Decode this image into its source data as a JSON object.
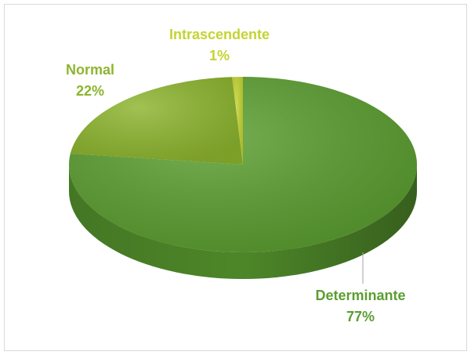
{
  "chart_data": {
    "type": "pie",
    "categories": [
      "Determinante",
      "Normal",
      "Intrascendente"
    ],
    "values": [
      77,
      22,
      1
    ],
    "value_labels": [
      "77%",
      "22%",
      "1%"
    ],
    "colors": [
      "#5b9e30",
      "#8db52e",
      "#c4d431"
    ]
  }
}
